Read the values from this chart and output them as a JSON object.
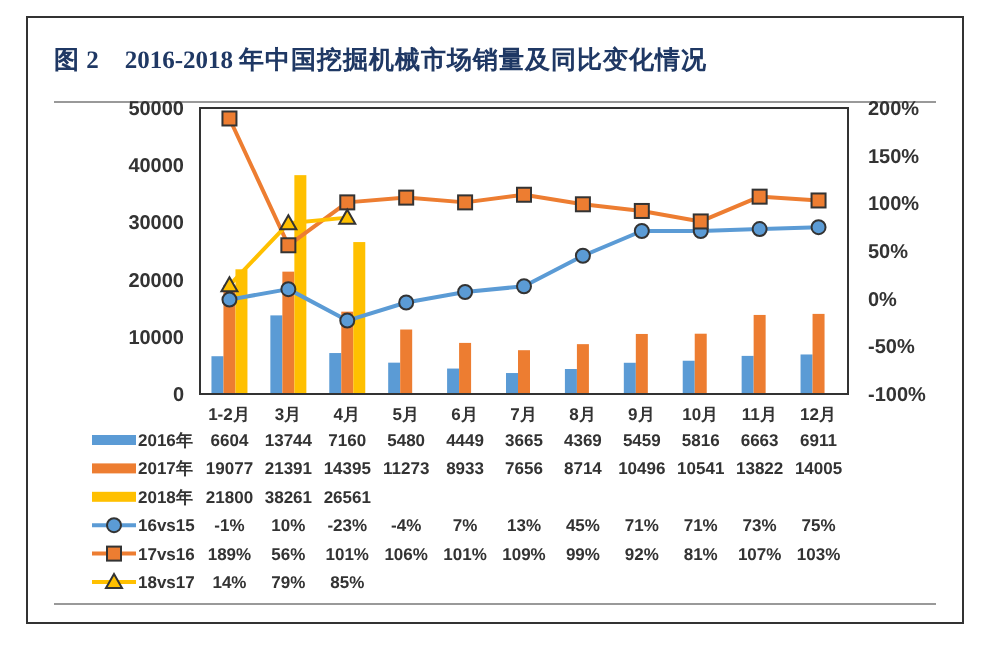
{
  "chart_data": {
    "type": "bar",
    "title": "图 2　2016-2018 年中国挖掘机械市场销量及同比变化情况",
    "categories": [
      "1-2月",
      "3月",
      "4月",
      "5月",
      "6月",
      "7月",
      "8月",
      "9月",
      "10月",
      "11月",
      "12月"
    ],
    "series": [
      {
        "name": "2016年",
        "color": "#5b9bd5",
        "values": [
          6604,
          13744,
          7160,
          5480,
          4449,
          3665,
          4369,
          5459,
          5816,
          6663,
          6911
        ],
        "value_labels": [
          "6604",
          "13744",
          "7160",
          "5480",
          "4449",
          "3665",
          "4369",
          "5459",
          "5816",
          "6663",
          "6911"
        ]
      },
      {
        "name": "2017年",
        "color": "#ed7d31",
        "values": [
          19077,
          21391,
          14395,
          11273,
          8933,
          7656,
          8714,
          10496,
          10541,
          13822,
          14005
        ],
        "value_labels": [
          "19077",
          "21391",
          "14395",
          "11273",
          "8933",
          "7656",
          "8714",
          "10496",
          "10541",
          "13822",
          "14005"
        ]
      },
      {
        "name": "2018年",
        "color": "#ffc000",
        "values": [
          21800,
          38261,
          26561,
          null,
          null,
          null,
          null,
          null,
          null,
          null,
          null
        ],
        "value_labels": [
          "21800",
          "38261",
          "26561",
          null,
          null,
          null,
          null,
          null,
          null,
          null,
          null
        ]
      },
      {
        "name": "16vs15",
        "type": "line",
        "axis": "y2",
        "marker": "circle",
        "color": "#5b9bd5",
        "values": [
          -1,
          10,
          -23,
          -4,
          7,
          13,
          45,
          71,
          71,
          73,
          75
        ],
        "value_labels": [
          "-1%",
          "10%",
          "-23%",
          "-4%",
          "7%",
          "13%",
          "45%",
          "71%",
          "71%",
          "73%",
          "75%"
        ]
      },
      {
        "name": "17vs16",
        "type": "line",
        "axis": "y2",
        "marker": "square",
        "color": "#ed7d31",
        "values": [
          189,
          56,
          101,
          106,
          101,
          109,
          99,
          92,
          81,
          107,
          103
        ],
        "value_labels": [
          "189%",
          "56%",
          "101%",
          "106%",
          "101%",
          "109%",
          "99%",
          "92%",
          "81%",
          "107%",
          "103%"
        ]
      },
      {
        "name": "18vs17",
        "type": "line",
        "axis": "y2",
        "marker": "triangle",
        "color": "#ffc000",
        "values": [
          14,
          79,
          85,
          null,
          null,
          null,
          null,
          null,
          null,
          null,
          null
        ],
        "value_labels": [
          "14%",
          "79%",
          "85%",
          null,
          null,
          null,
          null,
          null,
          null,
          null,
          null
        ]
      }
    ],
    "ylim": [
      0,
      50000
    ],
    "yticks": [
      0,
      10000,
      20000,
      30000,
      40000,
      50000
    ],
    "y2lim": [
      -100,
      200
    ],
    "y2ticks": [
      {
        "value": -100,
        "label": "-100%"
      },
      {
        "value": -50,
        "label": "-50%"
      },
      {
        "value": 0,
        "label": "0%"
      },
      {
        "value": 50,
        "label": "50%"
      },
      {
        "value": 100,
        "label": "100%"
      },
      {
        "value": 150,
        "label": "150%"
      },
      {
        "value": 200,
        "label": "200%"
      }
    ],
    "legend": "bottom",
    "grid": false
  }
}
